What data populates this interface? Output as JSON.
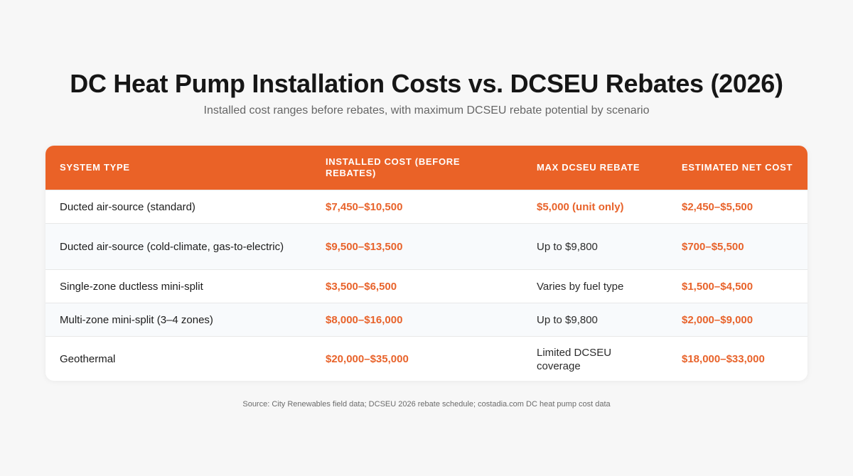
{
  "title": "DC Heat Pump Installation Costs vs. DCSEU Rebates (2026)",
  "subtitle": "Installed cost ranges before rebates, with maximum DCSEU rebate potential by scenario",
  "colors": {
    "header_background": "#ea6227",
    "accent_text": "#e8632b"
  },
  "table": {
    "headers": [
      "SYSTEM TYPE",
      "INSTALLED COST (BEFORE REBATES)",
      "MAX DCSEU REBATE",
      "ESTIMATED NET COST"
    ],
    "rows": [
      {
        "system": "Ducted air-source (standard)",
        "installed_cost": "$7,450–$10,500",
        "max_rebate": "$5,000 (unit only)",
        "rebate_highlighted": true,
        "net_cost": "$2,450–$5,500"
      },
      {
        "system": "Ducted air-source (cold-climate, gas-to-electric)",
        "installed_cost": "$9,500–$13,500",
        "max_rebate": "Up to $9,800",
        "rebate_highlighted": false,
        "net_cost": "$700–$5,500"
      },
      {
        "system": "Single-zone ductless mini-split",
        "installed_cost": "$3,500–$6,500",
        "max_rebate": "Varies by fuel type",
        "rebate_highlighted": false,
        "net_cost": "$1,500–$4,500"
      },
      {
        "system": "Multi-zone mini-split (3–4 zones)",
        "installed_cost": "$8,000–$16,000",
        "max_rebate": "Up to $9,800",
        "rebate_highlighted": false,
        "net_cost": "$2,000–$9,000"
      },
      {
        "system": "Geothermal",
        "installed_cost": "$20,000–$35,000",
        "max_rebate": "Limited DCSEU coverage",
        "rebate_highlighted": false,
        "net_cost": "$18,000–$33,000"
      }
    ]
  },
  "source": "Source: City Renewables field data; DCSEU 2026 rebate schedule; costadia.com DC heat pump cost data"
}
